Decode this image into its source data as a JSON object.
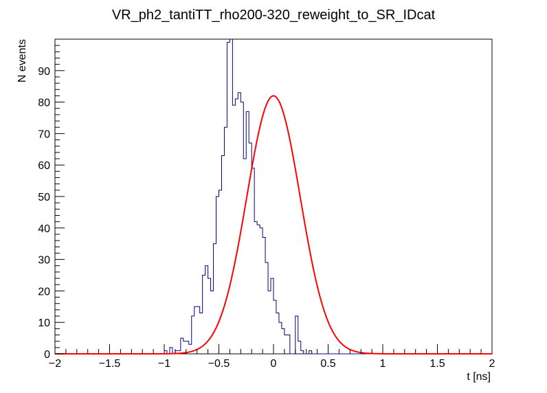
{
  "chart_data": {
    "type": "histogram",
    "title": "VR_ph2_tantiTT_rho200-320_reweight_to_SR_IDcat",
    "xlabel": "t [ns]",
    "ylabel": "N events",
    "xlim": [
      -2,
      2
    ],
    "ylim": [
      0,
      100
    ],
    "x_major_ticks": [
      -2,
      -1.5,
      -1,
      -0.5,
      0,
      0.5,
      1,
      1.5,
      2
    ],
    "x_tick_labels": [
      "−2",
      "−1.5",
      "−1",
      "−0.5",
      "0",
      "0.5",
      "1",
      "1.5",
      "2"
    ],
    "y_major_ticks": [
      0,
      10,
      20,
      30,
      40,
      50,
      60,
      70,
      80,
      90
    ],
    "y_tick_labels": [
      "0",
      "10",
      "20",
      "30",
      "40",
      "50",
      "60",
      "70",
      "80",
      "90"
    ],
    "histogram": {
      "bin_width": 0.025,
      "x_start": -2.0,
      "color": "#000080",
      "values": [
        0,
        0,
        0,
        0,
        0,
        0,
        0,
        0,
        0,
        0,
        0,
        0,
        0,
        0,
        0,
        0,
        0,
        0,
        0,
        0,
        0,
        0,
        0,
        0,
        0,
        0,
        0,
        0,
        0,
        0,
        0,
        0,
        0,
        0,
        0,
        0,
        0,
        0,
        0,
        0,
        1,
        0,
        2,
        0,
        1,
        1,
        5,
        4,
        4,
        3,
        12,
        15,
        15,
        13,
        25,
        28,
        24,
        20,
        35,
        50,
        52,
        63,
        72,
        99,
        100,
        79,
        81,
        83,
        80,
        62,
        77,
        67,
        59,
        42,
        41,
        40,
        37,
        29,
        20,
        24,
        17,
        13,
        10,
        8,
        6,
        6,
        0,
        0,
        12,
        4,
        1,
        0,
        0,
        1,
        0,
        0,
        0,
        0,
        0,
        0,
        0,
        0,
        0,
        0,
        0,
        0,
        0,
        0,
        0,
        0,
        0,
        0,
        0,
        0,
        0,
        0,
        0,
        0,
        0,
        0,
        0,
        0,
        0,
        0,
        0,
        0,
        0,
        0,
        0,
        0,
        0,
        0,
        0,
        0,
        0,
        0,
        0,
        0,
        0,
        0,
        0,
        0,
        0,
        0,
        0,
        0,
        0,
        0,
        0,
        0,
        0,
        0,
        0,
        0,
        0,
        0,
        0,
        0,
        0,
        0
      ]
    },
    "fit": {
      "type": "gaussian",
      "color": "#ff0000",
      "amplitude": 82,
      "mean": 0.0,
      "sigma": 0.245
    }
  }
}
